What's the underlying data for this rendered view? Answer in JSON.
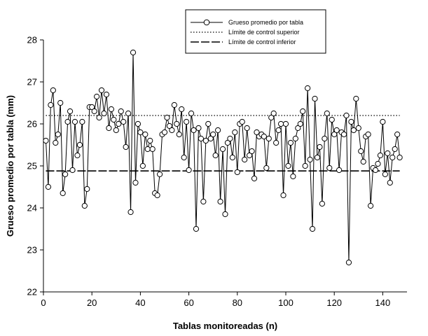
{
  "chart_data": {
    "type": "line",
    "title": "",
    "xlabel": "Tablas monitoreadas (n)",
    "ylabel": "Grueso promedio por tabla (mm)",
    "xlim": [
      0,
      150
    ],
    "ylim": [
      22,
      28
    ],
    "x_ticks": [
      0,
      20,
      40,
      60,
      80,
      100,
      120,
      140
    ],
    "y_ticks": [
      22,
      23,
      24,
      25,
      26,
      27,
      28
    ],
    "grid": false,
    "legend_position": "top-right",
    "legend": [
      {
        "label": "Grueso promedio por tabla",
        "style": "line-with-circle-markers"
      },
      {
        "label": "Límite de control superior",
        "style": "dotted"
      },
      {
        "label": "Límite de control inferior",
        "style": "long-dash"
      }
    ],
    "series": [
      {
        "name": "Grueso promedio por tabla",
        "x": [
          1,
          2,
          3,
          4,
          5,
          6,
          7,
          8,
          9,
          10,
          11,
          12,
          13,
          14,
          15,
          16,
          17,
          18,
          19,
          20,
          21,
          22,
          23,
          24,
          25,
          26,
          27,
          28,
          29,
          30,
          31,
          32,
          33,
          34,
          35,
          36,
          37,
          38,
          39,
          40,
          41,
          42,
          43,
          44,
          45,
          46,
          47,
          48,
          49,
          50,
          51,
          52,
          53,
          54,
          55,
          56,
          57,
          58,
          59,
          60,
          61,
          62,
          63,
          64,
          65,
          66,
          67,
          68,
          69,
          70,
          71,
          72,
          73,
          74,
          75,
          76,
          77,
          78,
          79,
          80,
          81,
          82,
          83,
          84,
          85,
          86,
          87,
          88,
          89,
          90,
          91,
          92,
          93,
          94,
          95,
          96,
          97,
          98,
          99,
          100,
          101,
          102,
          103,
          104,
          105,
          106,
          107,
          108,
          109,
          110,
          111,
          112,
          113,
          114,
          115,
          116,
          117,
          118,
          119,
          120,
          121,
          122,
          123,
          124,
          125,
          126,
          127,
          128,
          129,
          130,
          131,
          132,
          133,
          134,
          135,
          136,
          137,
          138,
          139,
          140,
          141,
          142,
          143,
          144,
          145,
          146,
          147
        ],
        "y": [
          25.6,
          24.5,
          26.45,
          26.8,
          25.55,
          25.75,
          26.5,
          24.35,
          24.8,
          26.05,
          26.3,
          24.9,
          26.05,
          25.25,
          25.5,
          26.05,
          24.05,
          24.45,
          26.4,
          26.4,
          26.3,
          26.65,
          26.15,
          26.8,
          26.25,
          26.7,
          25.9,
          26.35,
          26.1,
          25.85,
          26.0,
          26.3,
          26.05,
          25.45,
          26.25,
          23.9,
          27.7,
          24.6,
          26.0,
          25.8,
          25.0,
          25.75,
          25.4,
          25.6,
          25.4,
          24.35,
          24.3,
          24.8,
          25.75,
          25.8,
          26.15,
          25.95,
          25.85,
          26.45,
          26.0,
          25.75,
          26.35,
          25.2,
          26.05,
          24.9,
          26.25,
          25.85,
          23.5,
          25.9,
          25.65,
          24.15,
          25.6,
          26.0,
          25.65,
          25.75,
          25.25,
          25.85,
          24.15,
          25.4,
          23.85,
          25.55,
          25.65,
          25.2,
          25.8,
          24.85,
          26.0,
          26.05,
          25.15,
          25.9,
          25.25,
          25.35,
          24.7,
          25.8,
          25.7,
          25.75,
          25.7,
          24.95,
          25.65,
          26.15,
          26.25,
          25.55,
          25.85,
          26.0,
          24.3,
          26.0,
          25.0,
          25.55,
          24.75,
          25.65,
          25.9,
          26.0,
          26.3,
          25.0,
          26.85,
          25.15,
          23.5,
          26.6,
          25.2,
          25.45,
          24.1,
          25.65,
          26.25,
          24.95,
          26.1,
          25.75,
          25.85,
          24.9,
          25.8,
          25.75,
          26.2,
          22.7,
          26.05,
          25.85,
          26.6,
          25.9,
          25.35,
          25.1,
          25.7,
          25.75,
          24.05,
          24.95,
          24.9,
          25.05,
          25.25,
          26.05,
          24.8,
          25.3,
          24.6,
          25.2,
          25.4,
          25.75,
          25.2
        ]
      },
      {
        "name": "Límite de control superior",
        "x": [
          1,
          147
        ],
        "y": [
          26.2,
          26.2
        ]
      },
      {
        "name": "Límite de control inferior",
        "x": [
          1,
          147
        ],
        "y": [
          24.88,
          24.88
        ]
      }
    ]
  }
}
